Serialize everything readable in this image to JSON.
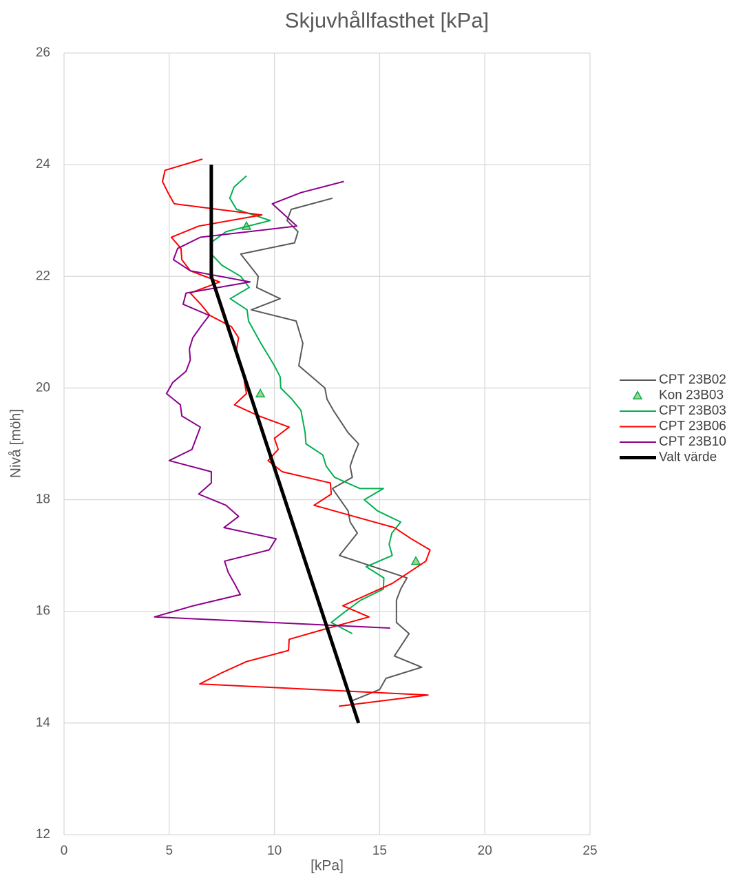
{
  "chart_data": {
    "type": "line",
    "title": "Skjuvhållfasthet [kPa]",
    "x_label": "[kPa]",
    "y_label": "Nivå [möh]",
    "xlim": [
      0,
      25
    ],
    "xticks": [
      0,
      5,
      10,
      15,
      20,
      25
    ],
    "ylim": [
      12,
      26
    ],
    "yticks": [
      12,
      14,
      16,
      18,
      20,
      22,
      24,
      26
    ],
    "grid": true,
    "legend": "right",
    "series": [
      {
        "name": "CPT 23B02",
        "color": "#595959",
        "style": "line",
        "line_width": 2,
        "x": [
          12.76,
          10.8,
          10.6,
          11.12,
          10.96,
          8.4,
          9.23,
          9.16,
          10.27,
          8.9,
          11.03,
          11.35,
          11.16,
          12.4,
          12.5,
          12.8,
          13.5,
          14.0,
          13.78,
          13.6,
          13.7,
          12.76,
          13.5,
          13.6,
          13.94,
          13.09,
          16.3,
          16.0,
          15.8,
          15.8,
          16.4,
          15.7,
          17.0,
          15.3,
          15.0,
          13.7
        ],
        "values": [
          23.4,
          23.2,
          23.0,
          22.8,
          22.6,
          22.4,
          22.0,
          21.8,
          21.6,
          21.4,
          21.2,
          20.8,
          20.4,
          20.0,
          19.8,
          19.6,
          19.2,
          19.0,
          18.8,
          18.6,
          18.4,
          18.2,
          17.8,
          17.6,
          17.4,
          17.0,
          16.6,
          16.4,
          16.2,
          15.8,
          15.6,
          15.2,
          15.0,
          14.8,
          14.6,
          14.4
        ]
      },
      {
        "name": "Kon 23B03",
        "color": "#00b050",
        "style": "markers",
        "x": [
          8.67,
          9.33,
          16.72
        ],
        "values": [
          22.9,
          19.9,
          16.9
        ]
      },
      {
        "name": "CPT 23B03",
        "color": "#00b050",
        "style": "line",
        "line_width": 2,
        "x": [
          8.67,
          8.08,
          7.88,
          8.2,
          9.8,
          7.7,
          6.97,
          7.0,
          7.5,
          8.4,
          8.8,
          7.9,
          8.7,
          8.77,
          9.36,
          10.0,
          10.27,
          10.3,
          10.83,
          11.26,
          11.46,
          11.5,
          12.3,
          12.46,
          12.86,
          14.07,
          15.18,
          14.27,
          14.9,
          16.0,
          15.58,
          15.45,
          15.6,
          14.36,
          15.2,
          15.18,
          14.1,
          13.38,
          12.7,
          13.7
        ],
        "values": [
          23.8,
          23.6,
          23.4,
          23.2,
          23.0,
          22.8,
          22.6,
          22.4,
          22.2,
          22.0,
          21.8,
          21.6,
          21.4,
          21.2,
          20.8,
          20.4,
          20.2,
          20.0,
          19.8,
          19.6,
          19.2,
          19.0,
          18.8,
          18.6,
          18.4,
          18.2,
          18.2,
          18.0,
          17.8,
          17.6,
          17.4,
          17.2,
          17.0,
          16.8,
          16.6,
          16.4,
          16.2,
          16.0,
          15.8,
          15.6
        ]
      },
      {
        "name": "CPT 23B06",
        "color": "#ff0000",
        "style": "line",
        "line_width": 2,
        "x": [
          6.58,
          4.8,
          4.68,
          4.94,
          5.24,
          9.4,
          6.4,
          5.1,
          5.56,
          5.6,
          6.0,
          7.4,
          6.0,
          6.5,
          6.93,
          7.95,
          8.3,
          8.2,
          8.25,
          8.5,
          8.58,
          8.67,
          8.1,
          9.26,
          10.7,
          10.0,
          10.18,
          9.7,
          10.37,
          12.66,
          12.7,
          11.88,
          15.7,
          16.5,
          17.4,
          17.2,
          15.6,
          13.25,
          14.5,
          12.57,
          10.7,
          10.67,
          8.67,
          7.5,
          6.45,
          17.3,
          13.06
        ],
        "values": [
          24.1,
          23.9,
          23.7,
          23.5,
          23.3,
          23.1,
          22.9,
          22.7,
          22.5,
          22.3,
          22.1,
          21.9,
          21.7,
          21.5,
          21.3,
          21.1,
          20.9,
          20.7,
          20.5,
          20.3,
          20.1,
          19.9,
          19.7,
          19.5,
          19.3,
          19.1,
          18.9,
          18.7,
          18.5,
          18.3,
          18.1,
          17.9,
          17.5,
          17.3,
          17.1,
          16.9,
          16.5,
          16.1,
          15.9,
          15.7,
          15.5,
          15.3,
          15.1,
          14.9,
          14.7,
          14.5,
          14.3
        ]
      },
      {
        "name": "CPT 23B10",
        "color": "#8b008b",
        "style": "line",
        "line_width": 2,
        "x": [
          13.3,
          11.26,
          9.9,
          11.06,
          6.48,
          5.4,
          5.2,
          6.0,
          8.84,
          5.8,
          5.66,
          6.9,
          6.5,
          6.12,
          5.96,
          6.0,
          5.8,
          5.17,
          4.87,
          5.53,
          5.6,
          6.48,
          6.08,
          5.0,
          7.0,
          7.0,
          6.4,
          7.7,
          8.3,
          7.6,
          10.08,
          9.75,
          7.63,
          7.8,
          8.1,
          8.38,
          6.15,
          4.3,
          15.5
        ],
        "values": [
          23.7,
          23.5,
          23.3,
          22.9,
          22.7,
          22.5,
          22.3,
          22.1,
          21.9,
          21.7,
          21.5,
          21.3,
          21.1,
          20.9,
          20.7,
          20.5,
          20.3,
          20.1,
          19.9,
          19.7,
          19.5,
          19.3,
          18.9,
          18.7,
          18.5,
          18.3,
          18.1,
          17.9,
          17.7,
          17.5,
          17.3,
          17.1,
          16.9,
          16.7,
          16.5,
          16.3,
          16.1,
          15.9,
          15.7
        ]
      },
      {
        "name": "Valt värde",
        "color": "#000000",
        "style": "line",
        "line_width": 5,
        "x": [
          7,
          7,
          14
        ],
        "values": [
          24,
          22,
          14
        ]
      }
    ]
  }
}
